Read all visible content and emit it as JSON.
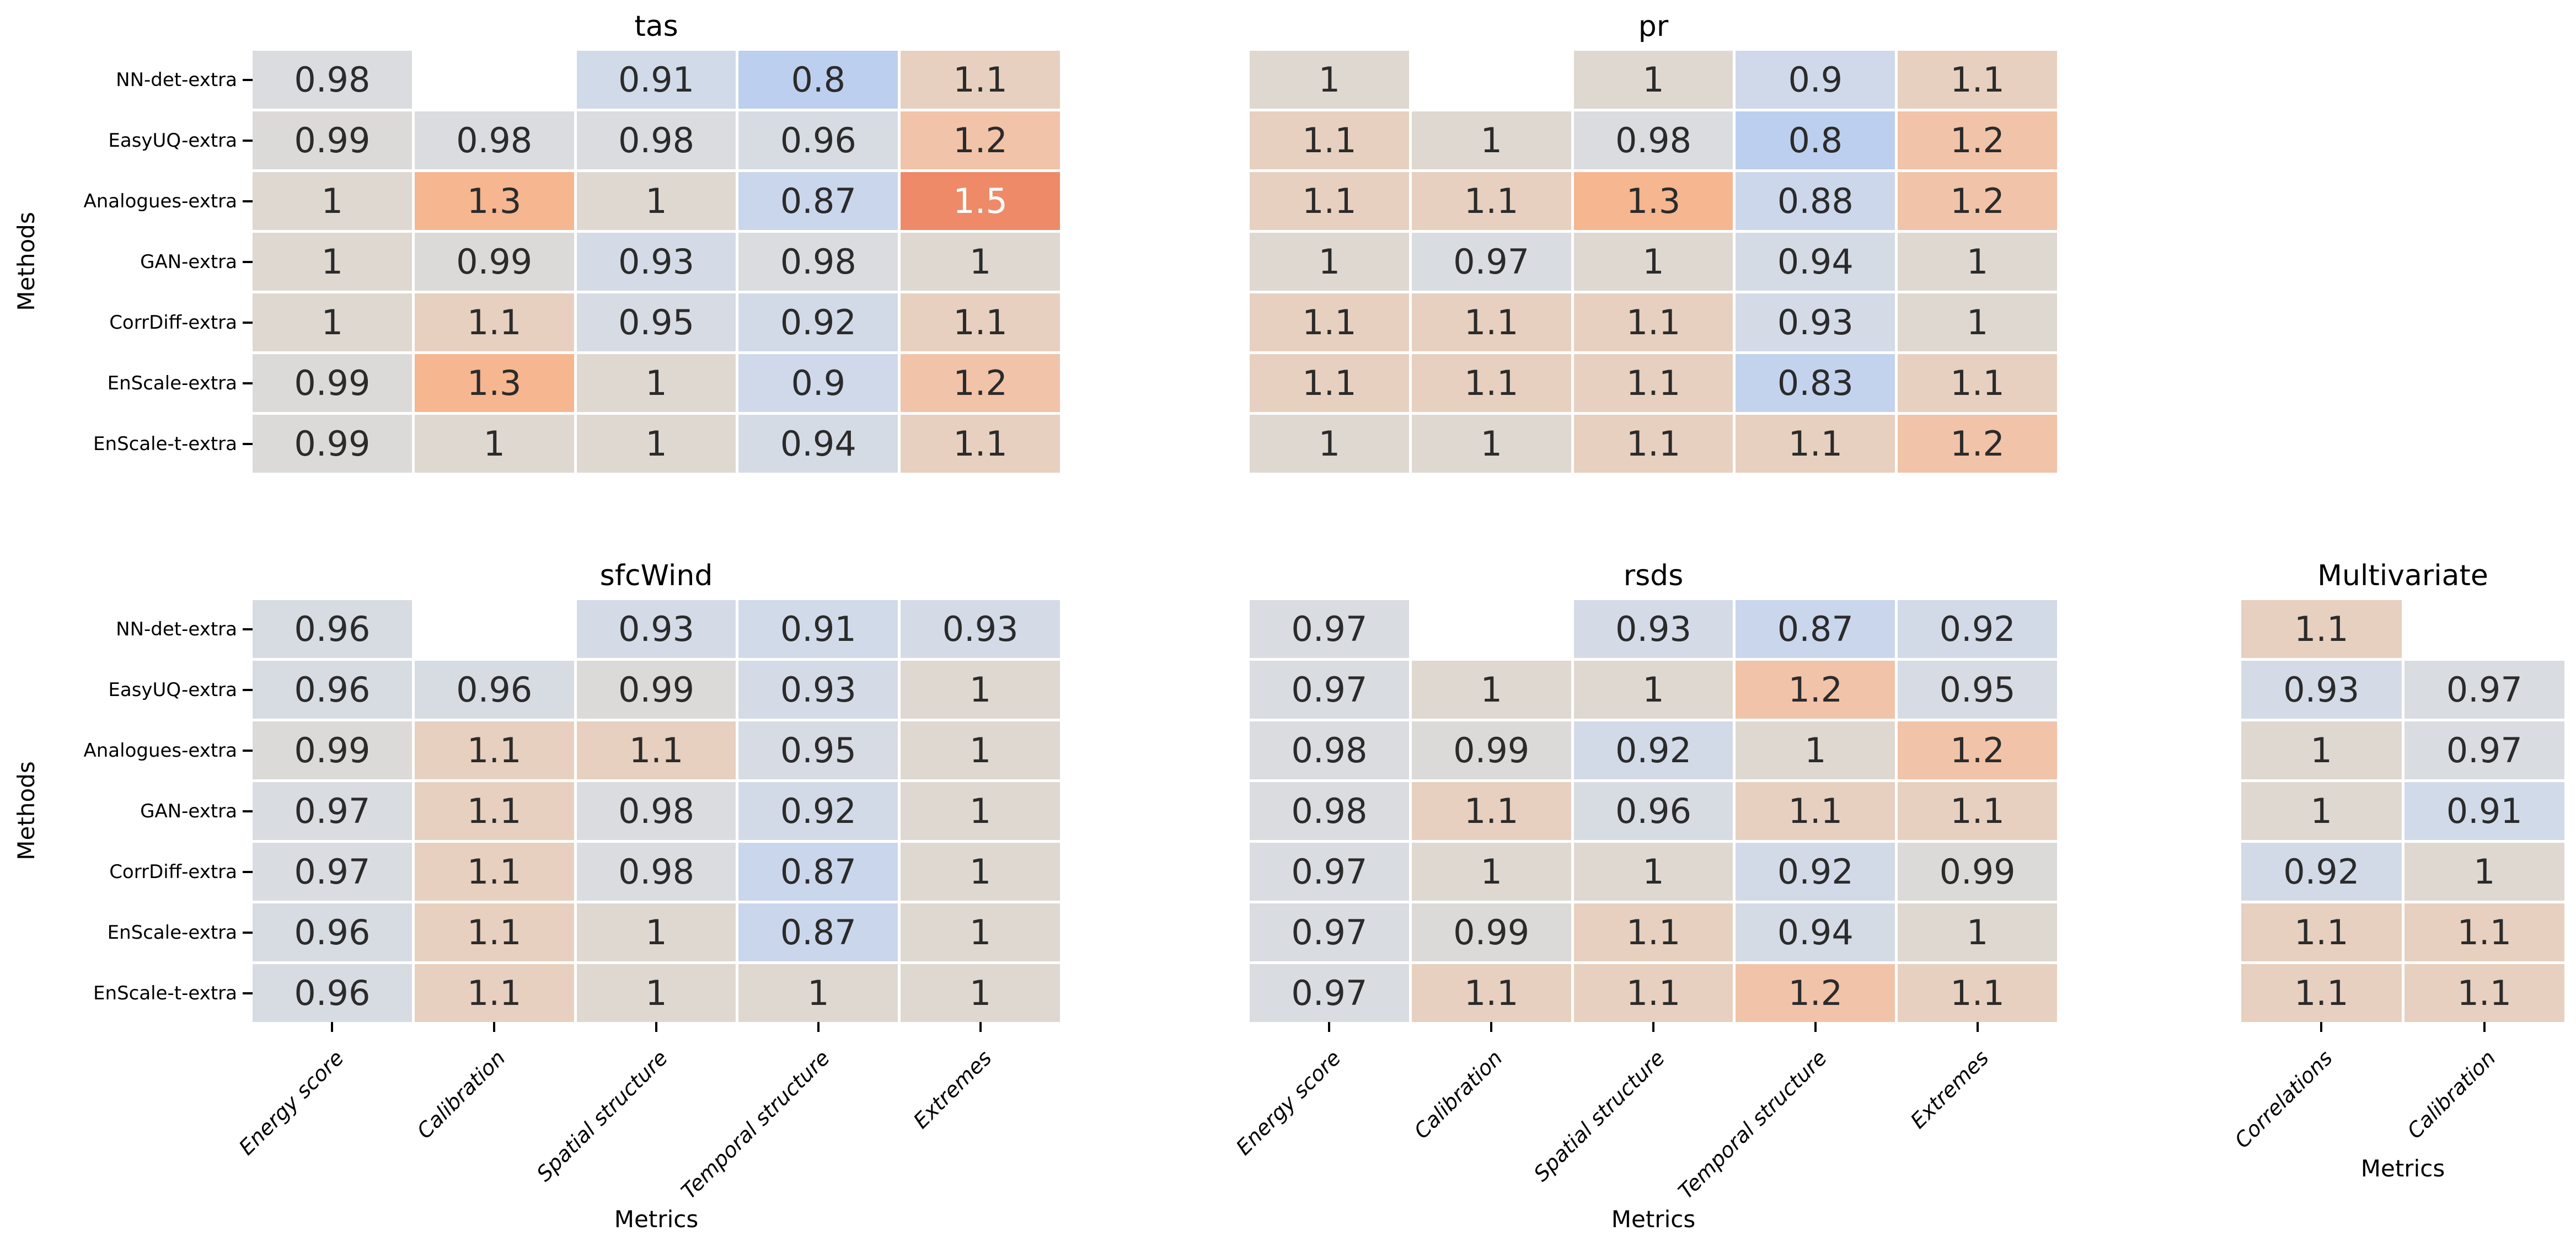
{
  "figure": {
    "background": "#ffffff"
  },
  "axis_labels": {
    "x": "Metrics",
    "y": "Methods"
  },
  "methods": [
    "NN-det-extra",
    "EasyUQ-extra",
    "Analogues-extra",
    "GAN-extra",
    "CorrDiff-extra",
    "EnScale-extra",
    "EnScale-t-extra"
  ],
  "metrics_main": [
    "Energy score",
    "Calibration",
    "Spatial structure",
    "Temporal structure",
    "Extremes"
  ],
  "metrics_multivariate": [
    "Correlations",
    "Calibration"
  ],
  "colormap": {
    "empty": "#ffffff",
    "text": "#2b2b2b",
    "text_light": "#ffffff",
    "light_text_min": 1.45,
    "stops": [
      [
        0.8,
        "#bdcfee"
      ],
      [
        0.83,
        "#c3d3ee"
      ],
      [
        0.87,
        "#cad6ec"
      ],
      [
        0.9,
        "#cfd9ea"
      ],
      [
        0.92,
        "#d2dae8"
      ],
      [
        0.94,
        "#d5dbe5"
      ],
      [
        0.96,
        "#d7dbe2"
      ],
      [
        0.98,
        "#dadcdf"
      ],
      [
        1.0,
        "#ded8d1"
      ],
      [
        1.05,
        "#e2d4c9"
      ],
      [
        1.1,
        "#e7d0bf"
      ],
      [
        1.15,
        "#ecc9b3"
      ],
      [
        1.2,
        "#f1c3a8"
      ],
      [
        1.3,
        "#f5b690"
      ],
      [
        1.4,
        "#f2a07b"
      ],
      [
        1.5,
        "#ee8a67"
      ]
    ]
  },
  "chart_data": [
    {
      "type": "heatmap",
      "title": "tas",
      "position": "top-left",
      "show_y_labels": true,
      "show_x_labels": false,
      "rows": [
        "NN-det-extra",
        "EasyUQ-extra",
        "Analogues-extra",
        "GAN-extra",
        "CorrDiff-extra",
        "EnScale-extra",
        "EnScale-t-extra"
      ],
      "columns": [
        "Energy score",
        "Calibration",
        "Spatial structure",
        "Temporal structure",
        "Extremes"
      ],
      "values": [
        [
          0.98,
          null,
          0.91,
          0.8,
          1.1
        ],
        [
          0.99,
          0.98,
          0.98,
          0.96,
          1.2
        ],
        [
          1,
          1.3,
          1,
          0.87,
          1.5
        ],
        [
          1,
          0.99,
          0.93,
          0.98,
          1
        ],
        [
          1,
          1.1,
          0.95,
          0.92,
          1.1
        ],
        [
          0.99,
          1.3,
          1,
          0.9,
          1.2
        ],
        [
          0.99,
          1,
          1,
          0.94,
          1.1
        ]
      ],
      "labels": [
        [
          "0.98",
          "",
          "0.91",
          "0.8",
          "1.1"
        ],
        [
          "0.99",
          "0.98",
          "0.98",
          "0.96",
          "1.2"
        ],
        [
          "1",
          "1.3",
          "1",
          "0.87",
          "1.5"
        ],
        [
          "1",
          "0.99",
          "0.93",
          "0.98",
          "1"
        ],
        [
          "1",
          "1.1",
          "0.95",
          "0.92",
          "1.1"
        ],
        [
          "0.99",
          "1.3",
          "1",
          "0.9",
          "1.2"
        ],
        [
          "0.99",
          "1",
          "1",
          "0.94",
          "1.1"
        ]
      ]
    },
    {
      "type": "heatmap",
      "title": "pr",
      "position": "top-right",
      "show_y_labels": false,
      "show_x_labels": false,
      "rows": [
        "NN-det-extra",
        "EasyUQ-extra",
        "Analogues-extra",
        "GAN-extra",
        "CorrDiff-extra",
        "EnScale-extra",
        "EnScale-t-extra"
      ],
      "columns": [
        "Energy score",
        "Calibration",
        "Spatial structure",
        "Temporal structure",
        "Extremes"
      ],
      "values": [
        [
          1,
          null,
          1,
          0.9,
          1.1
        ],
        [
          1.1,
          1,
          0.98,
          0.8,
          1.2
        ],
        [
          1.1,
          1.1,
          1.3,
          0.88,
          1.2
        ],
        [
          1,
          0.97,
          1,
          0.94,
          1
        ],
        [
          1.1,
          1.1,
          1.1,
          0.93,
          1
        ],
        [
          1.1,
          1.1,
          1.1,
          0.83,
          1.1
        ],
        [
          1,
          1,
          1.1,
          1.1,
          1.2
        ]
      ],
      "labels": [
        [
          "1",
          "",
          "1",
          "0.9",
          "1.1"
        ],
        [
          "1.1",
          "1",
          "0.98",
          "0.8",
          "1.2"
        ],
        [
          "1.1",
          "1.1",
          "1.3",
          "0.88",
          "1.2"
        ],
        [
          "1",
          "0.97",
          "1",
          "0.94",
          "1"
        ],
        [
          "1.1",
          "1.1",
          "1.1",
          "0.93",
          "1"
        ],
        [
          "1.1",
          "1.1",
          "1.1",
          "0.83",
          "1.1"
        ],
        [
          "1",
          "1",
          "1.1",
          "1.1",
          "1.2"
        ]
      ]
    },
    {
      "type": "heatmap",
      "title": "sfcWind",
      "position": "bottom-left",
      "show_y_labels": true,
      "show_x_labels": true,
      "rows": [
        "NN-det-extra",
        "EasyUQ-extra",
        "Analogues-extra",
        "GAN-extra",
        "CorrDiff-extra",
        "EnScale-extra",
        "EnScale-t-extra"
      ],
      "columns": [
        "Energy score",
        "Calibration",
        "Spatial structure",
        "Temporal structure",
        "Extremes"
      ],
      "values": [
        [
          0.96,
          null,
          0.93,
          0.91,
          0.93
        ],
        [
          0.96,
          0.96,
          0.99,
          0.93,
          1
        ],
        [
          0.99,
          1.1,
          1.1,
          0.95,
          1
        ],
        [
          0.97,
          1.1,
          0.98,
          0.92,
          1
        ],
        [
          0.97,
          1.1,
          0.98,
          0.87,
          1
        ],
        [
          0.96,
          1.1,
          1,
          0.87,
          1
        ],
        [
          0.96,
          1.1,
          1,
          1,
          1
        ]
      ],
      "labels": [
        [
          "0.96",
          "",
          "0.93",
          "0.91",
          "0.93"
        ],
        [
          "0.96",
          "0.96",
          "0.99",
          "0.93",
          "1"
        ],
        [
          "0.99",
          "1.1",
          "1.1",
          "0.95",
          "1"
        ],
        [
          "0.97",
          "1.1",
          "0.98",
          "0.92",
          "1"
        ],
        [
          "0.97",
          "1.1",
          "0.98",
          "0.87",
          "1"
        ],
        [
          "0.96",
          "1.1",
          "1",
          "0.87",
          "1"
        ],
        [
          "0.96",
          "1.1",
          "1",
          "1",
          "1"
        ]
      ]
    },
    {
      "type": "heatmap",
      "title": "rsds",
      "position": "bottom-middle",
      "show_y_labels": false,
      "show_x_labels": true,
      "rows": [
        "NN-det-extra",
        "EasyUQ-extra",
        "Analogues-extra",
        "GAN-extra",
        "CorrDiff-extra",
        "EnScale-extra",
        "EnScale-t-extra"
      ],
      "columns": [
        "Energy score",
        "Calibration",
        "Spatial structure",
        "Temporal structure",
        "Extremes"
      ],
      "values": [
        [
          0.97,
          null,
          0.93,
          0.87,
          0.92
        ],
        [
          0.97,
          1,
          1,
          1.2,
          0.95
        ],
        [
          0.98,
          0.99,
          0.92,
          1,
          1.2
        ],
        [
          0.98,
          1.1,
          0.96,
          1.1,
          1.1
        ],
        [
          0.97,
          1,
          1,
          0.92,
          0.99
        ],
        [
          0.97,
          0.99,
          1.1,
          0.94,
          1
        ],
        [
          0.97,
          1.1,
          1.1,
          1.2,
          1.1
        ]
      ],
      "labels": [
        [
          "0.97",
          "",
          "0.93",
          "0.87",
          "0.92"
        ],
        [
          "0.97",
          "1",
          "1",
          "1.2",
          "0.95"
        ],
        [
          "0.98",
          "0.99",
          "0.92",
          "1",
          "1.2"
        ],
        [
          "0.98",
          "1.1",
          "0.96",
          "1.1",
          "1.1"
        ],
        [
          "0.97",
          "1",
          "1",
          "0.92",
          "0.99"
        ],
        [
          "0.97",
          "0.99",
          "1.1",
          "0.94",
          "1"
        ],
        [
          "0.97",
          "1.1",
          "1.1",
          "1.2",
          "1.1"
        ]
      ]
    },
    {
      "type": "heatmap",
      "title": "Multivariate",
      "position": "bottom-right",
      "show_y_labels": false,
      "show_x_labels": true,
      "rows": [
        "NN-det-extra",
        "EasyUQ-extra",
        "Analogues-extra",
        "GAN-extra",
        "CorrDiff-extra",
        "EnScale-extra",
        "EnScale-t-extra"
      ],
      "columns": [
        "Correlations",
        "Calibration"
      ],
      "values": [
        [
          1.1,
          null
        ],
        [
          0.93,
          0.97
        ],
        [
          1,
          0.97
        ],
        [
          1,
          0.91
        ],
        [
          0.92,
          1
        ],
        [
          1.1,
          1.1
        ],
        [
          1.1,
          1.1
        ]
      ],
      "labels": [
        [
          "1.1",
          ""
        ],
        [
          "0.93",
          "0.97"
        ],
        [
          "1",
          "0.97"
        ],
        [
          "1",
          "0.91"
        ],
        [
          "0.92",
          "1"
        ],
        [
          "1.1",
          "1.1"
        ],
        [
          "1.1",
          "1.1"
        ]
      ]
    }
  ]
}
